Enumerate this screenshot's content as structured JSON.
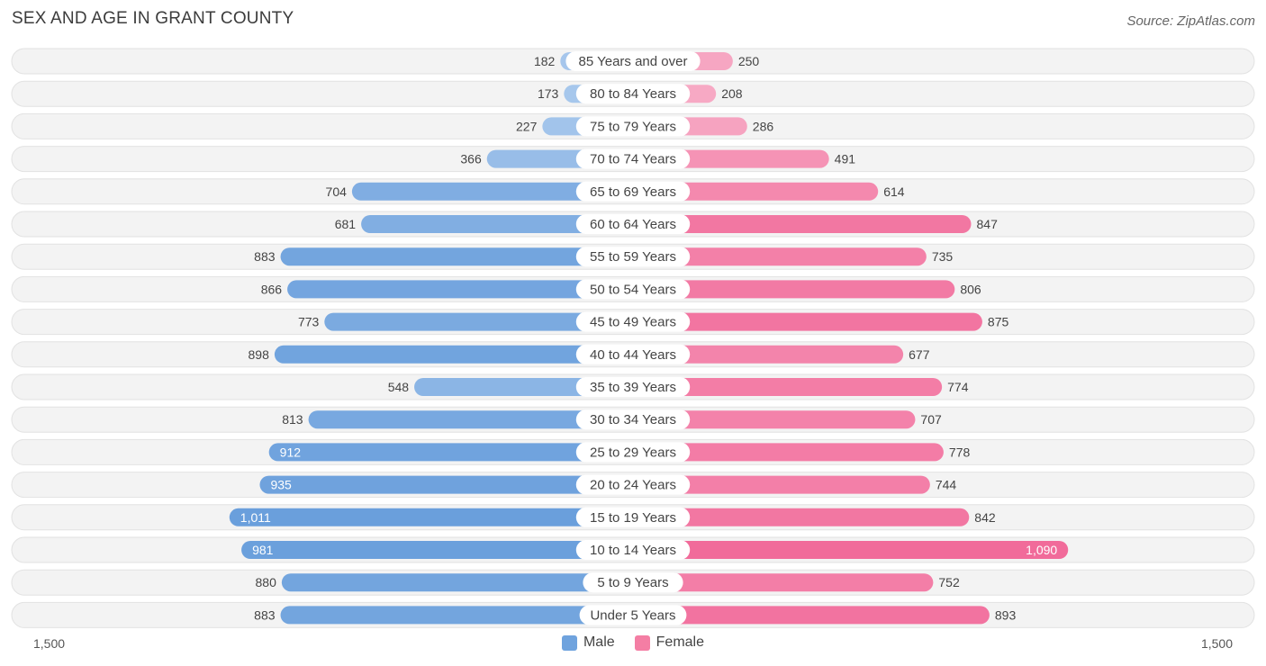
{
  "title": "SEX AND AGE IN GRANT COUNTY",
  "source": "Source: ZipAtlas.com",
  "colors": {
    "male": "#6fa3de",
    "female": "#f47ea4"
  },
  "chart_data": {
    "type": "bar",
    "orientation": "horizontal-diverging",
    "categories": [
      "85 Years and over",
      "80 to 84 Years",
      "75 to 79 Years",
      "70 to 74 Years",
      "65 to 69 Years",
      "60 to 64 Years",
      "55 to 59 Years",
      "50 to 54 Years",
      "45 to 49 Years",
      "40 to 44 Years",
      "35 to 39 Years",
      "30 to 34 Years",
      "25 to 29 Years",
      "20 to 24 Years",
      "15 to 19 Years",
      "10 to 14 Years",
      "5 to 9 Years",
      "Under 5 Years"
    ],
    "series": [
      {
        "name": "Male",
        "values": [
          182,
          173,
          227,
          366,
          704,
          681,
          883,
          866,
          773,
          898,
          548,
          813,
          912,
          935,
          1011,
          981,
          880,
          883
        ],
        "labels": [
          "182",
          "173",
          "227",
          "366",
          "704",
          "681",
          "883",
          "866",
          "773",
          "898",
          "548",
          "813",
          "912",
          "935",
          "1,011",
          "981",
          "880",
          "883"
        ]
      },
      {
        "name": "Female",
        "values": [
          250,
          208,
          286,
          491,
          614,
          847,
          735,
          806,
          875,
          677,
          774,
          707,
          778,
          744,
          842,
          1090,
          752,
          893
        ],
        "labels": [
          "250",
          "208",
          "286",
          "491",
          "614",
          "847",
          "735",
          "806",
          "875",
          "677",
          "774",
          "707",
          "778",
          "744",
          "842",
          "1,090",
          "752",
          "893"
        ]
      }
    ],
    "axis": {
      "max": 1500,
      "left_label": "1,500",
      "right_label": "1,500"
    },
    "legend": {
      "placement": "bottom-center",
      "items": [
        "Male",
        "Female"
      ]
    }
  }
}
